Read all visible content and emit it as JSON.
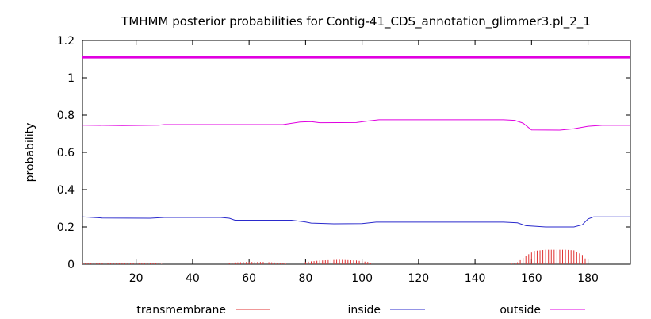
{
  "chart_data": {
    "type": "line",
    "title": "TMHMM posterior probabilities for Contig-41_CDS_annotation_glimmer3.pl_2_1",
    "xlabel": "",
    "ylabel": "probability",
    "xlim": [
      1,
      195
    ],
    "ylim": [
      0,
      1.2
    ],
    "xticks": [
      20,
      40,
      60,
      80,
      100,
      120,
      140,
      160,
      180
    ],
    "yticks": [
      0,
      0.2,
      0.4,
      0.6,
      0.8,
      1,
      1.2
    ],
    "ytick_labels": [
      "0",
      "0.2",
      "0.4",
      "0.6",
      "0.8",
      "1",
      "1.2"
    ],
    "reference_line": {
      "y": 1.11,
      "color": "#e000e0"
    },
    "legend_position": "bottom",
    "series": [
      {
        "name": "transmembrane",
        "color": "#e03030",
        "style": "impulses",
        "points": [
          [
            1,
            0.004
          ],
          [
            10,
            0.005
          ],
          [
            20,
            0.006
          ],
          [
            28,
            0.004
          ],
          [
            30,
            0
          ],
          [
            52,
            0
          ],
          [
            53,
            0.008
          ],
          [
            60,
            0.012
          ],
          [
            66,
            0.012
          ],
          [
            72,
            0.006
          ],
          [
            74,
            0
          ],
          [
            79,
            0
          ],
          [
            80,
            0.012
          ],
          [
            85,
            0.02
          ],
          [
            92,
            0.024
          ],
          [
            98,
            0.02
          ],
          [
            102,
            0.012
          ],
          [
            104,
            0
          ],
          [
            152,
            0
          ],
          [
            155,
            0.01
          ],
          [
            158,
            0.045
          ],
          [
            161,
            0.072
          ],
          [
            165,
            0.078
          ],
          [
            172,
            0.078
          ],
          [
            175,
            0.075
          ],
          [
            178,
            0.05
          ],
          [
            180,
            0.012
          ],
          [
            181,
            0
          ]
        ]
      },
      {
        "name": "inside",
        "color": "#2a2acc",
        "style": "line",
        "points": [
          [
            1,
            0.254
          ],
          [
            8,
            0.248
          ],
          [
            25,
            0.247
          ],
          [
            30,
            0.251
          ],
          [
            50,
            0.251
          ],
          [
            53,
            0.247
          ],
          [
            55,
            0.236
          ],
          [
            75,
            0.236
          ],
          [
            80,
            0.227
          ],
          [
            82,
            0.221
          ],
          [
            90,
            0.217
          ],
          [
            100,
            0.218
          ],
          [
            105,
            0.226
          ],
          [
            150,
            0.226
          ],
          [
            155,
            0.222
          ],
          [
            158,
            0.207
          ],
          [
            165,
            0.2
          ],
          [
            175,
            0.2
          ],
          [
            178,
            0.212
          ],
          [
            180,
            0.243
          ],
          [
            182,
            0.254
          ],
          [
            195,
            0.254
          ]
        ]
      },
      {
        "name": "outside",
        "color": "#e000e0",
        "style": "line",
        "points": [
          [
            1,
            0.746
          ],
          [
            15,
            0.744
          ],
          [
            28,
            0.746
          ],
          [
            30,
            0.749
          ],
          [
            72,
            0.749
          ],
          [
            78,
            0.763
          ],
          [
            82,
            0.765
          ],
          [
            85,
            0.759
          ],
          [
            98,
            0.76
          ],
          [
            102,
            0.768
          ],
          [
            106,
            0.775
          ],
          [
            150,
            0.775
          ],
          [
            154,
            0.772
          ],
          [
            157,
            0.757
          ],
          [
            160,
            0.72
          ],
          [
            170,
            0.719
          ],
          [
            175,
            0.727
          ],
          [
            180,
            0.74
          ],
          [
            185,
            0.745
          ],
          [
            195,
            0.745
          ]
        ]
      }
    ]
  }
}
